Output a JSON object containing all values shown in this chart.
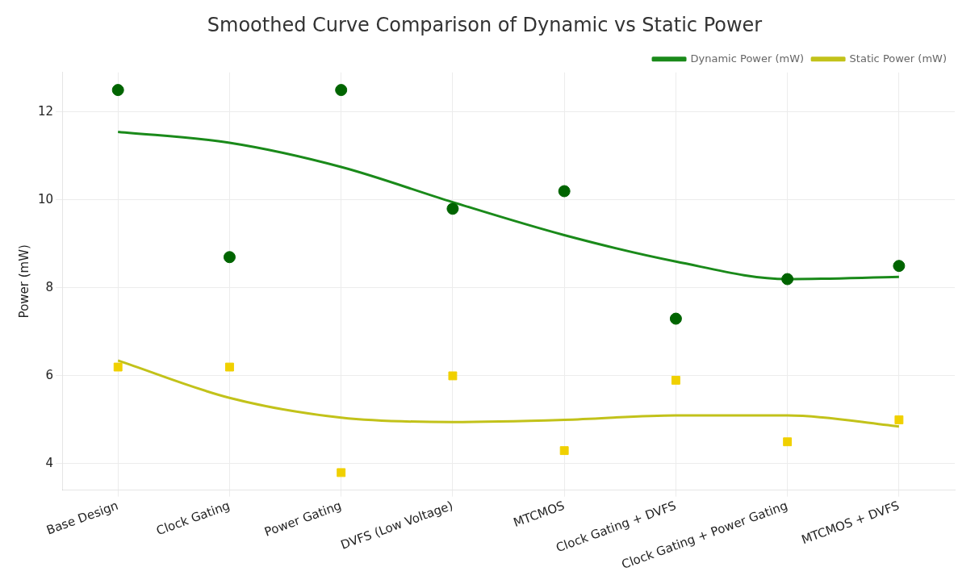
{
  "chart_data": {
    "type": "line",
    "title": "Smoothed Curve Comparison of Dynamic vs Static Power",
    "ylabel": "Power (mW)",
    "categories": [
      "Base Design",
      "Clock Gating",
      "Power Gating",
      "DVFS (Low Voltage)",
      "MTCMOS",
      "Clock Gating + DVFS",
      "Clock Gating + Power Gating",
      "MTCMOS + DVFS"
    ],
    "series": [
      {
        "type": "scatter",
        "marker": "circle",
        "color": "#006400",
        "x": [
          "Base Design",
          "Clock Gating",
          "Power Gating",
          "DVFS (Low Voltage)",
          "MTCMOS",
          "Clock Gating + DVFS",
          "Clock Gating + Power Gating",
          "MTCMOS + DVFS"
        ],
        "values": [
          12.5,
          8.7,
          12.5,
          9.8,
          10.2,
          7.3,
          8.2,
          8.5
        ]
      },
      {
        "type": "scatter",
        "marker": "square",
        "color": "#f0d000",
        "x": [
          "Base Design",
          "Clock Gating",
          "Power Gating",
          "DVFS (Low Voltage)",
          "MTCMOS",
          "Clock Gating + DVFS",
          "Clock Gating + Power Gating",
          "MTCMOS + DVFS"
        ],
        "values": [
          6.2,
          6.2,
          3.8,
          6.0,
          4.3,
          5.9,
          4.5,
          5.0
        ]
      },
      {
        "name": "Dynamic Power (mW)",
        "color": "#1a8a1a",
        "values": [
          11.55,
          11.3,
          10.75,
          9.95,
          9.2,
          8.6,
          8.2,
          8.25
        ]
      },
      {
        "name": "Static Power (mW)",
        "color": "#c2c21a",
        "values": [
          6.35,
          5.5,
          5.05,
          4.95,
          5.0,
          5.1,
          5.1,
          4.85
        ]
      }
    ],
    "ylim": [
      3.4,
      12.9
    ],
    "yticks": [
      4,
      6,
      8,
      10,
      12
    ],
    "grid": true,
    "legend": "top right",
    "line_style": "solid"
  }
}
